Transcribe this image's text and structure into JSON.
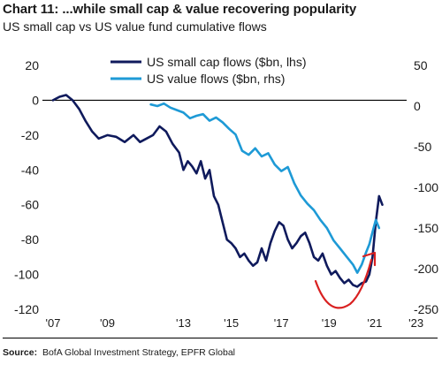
{
  "header": {
    "title": "Chart 11: ...while small cap & value recovering popularity",
    "subtitle": "US small cap vs US value fund cumulative flows"
  },
  "footer": {
    "source_label": "Source:",
    "source_text": "BofA Global Investment Strategy, EPFR Global"
  },
  "colors": {
    "small_cap": "#0f1a5c",
    "value": "#1e9ad6",
    "annotation": "#d92020",
    "zero_line": "#000000"
  },
  "chart_data": {
    "type": "line",
    "title": "Chart 11: ...while small cap & value recovering popularity",
    "subtitle": "US small cap vs US value fund cumulative flows",
    "x_ticks": [
      "'07",
      "'09",
      "'13",
      "'15",
      "'17",
      "'19",
      "'21",
      "'23"
    ],
    "x_tick_positions": [
      2007,
      2009.5,
      2013,
      2015.2,
      2017.5,
      2019.7,
      2021.8,
      2023.7
    ],
    "xlim": [
      2007,
      2024
    ],
    "y_left": {
      "ticks": [
        20,
        0,
        -20,
        -40,
        -60,
        -80,
        -100,
        -120
      ],
      "ylim": [
        -120,
        20
      ]
    },
    "y_right": {
      "ticks": [
        50,
        0,
        -50,
        -100,
        -150,
        -200,
        -250
      ],
      "ylim": [
        -250,
        50
      ]
    },
    "legend": {
      "placement": "top-center"
    },
    "series": [
      {
        "name": "US small cap flows ($bn, lhs)",
        "axis": "left",
        "x": [
          2007.0,
          2007.3,
          2007.6,
          2007.9,
          2008.2,
          2008.5,
          2008.8,
          2009.1,
          2009.5,
          2009.9,
          2010.3,
          2010.7,
          2011.0,
          2011.3,
          2011.6,
          2011.9,
          2012.2,
          2012.5,
          2012.8,
          2013.0,
          2013.2,
          2013.4,
          2013.6,
          2013.8,
          2014.0,
          2014.2,
          2014.4,
          2014.6,
          2014.8,
          2015.0,
          2015.2,
          2015.4,
          2015.6,
          2015.8,
          2016.0,
          2016.2,
          2016.4,
          2016.6,
          2016.8,
          2017.0,
          2017.2,
          2017.4,
          2017.6,
          2017.8,
          2018.0,
          2018.2,
          2018.4,
          2018.6,
          2018.8,
          2019.0,
          2019.2,
          2019.4,
          2019.6,
          2019.8,
          2020.0,
          2020.2,
          2020.4,
          2020.6,
          2020.8,
          2021.0,
          2021.2,
          2021.4,
          2021.55,
          2021.7,
          2021.85,
          2022.0,
          2022.15
        ],
        "values": [
          0,
          2,
          3,
          0,
          -5,
          -12,
          -18,
          -22,
          -20,
          -21,
          -24,
          -20,
          -24,
          -22,
          -20,
          -15,
          -18,
          -25,
          -30,
          -40,
          -35,
          -38,
          -42,
          -35,
          -45,
          -40,
          -55,
          -60,
          -70,
          -80,
          -82,
          -85,
          -90,
          -88,
          -92,
          -95,
          -93,
          -85,
          -92,
          -82,
          -75,
          -70,
          -72,
          -80,
          -85,
          -82,
          -78,
          -76,
          -82,
          -90,
          -92,
          -88,
          -95,
          -100,
          -98,
          -102,
          -105,
          -103,
          -106,
          -107,
          -105,
          -104,
          -100,
          -90,
          -70,
          -55,
          -60
        ]
      },
      {
        "name": "US value flows ($bn, rhs)",
        "axis": "right",
        "x": [
          2011.5,
          2011.8,
          2012.1,
          2012.4,
          2012.7,
          2013.0,
          2013.3,
          2013.6,
          2013.9,
          2014.2,
          2014.5,
          2014.8,
          2015.1,
          2015.4,
          2015.7,
          2016.0,
          2016.3,
          2016.6,
          2016.9,
          2017.2,
          2017.5,
          2017.8,
          2018.1,
          2018.4,
          2018.7,
          2019.0,
          2019.3,
          2019.6,
          2019.9,
          2020.2,
          2020.5,
          2020.8,
          2021.0,
          2021.2,
          2021.4,
          2021.55,
          2021.7,
          2021.85,
          2022.0
        ],
        "values": [
          2,
          0,
          3,
          -2,
          -5,
          -8,
          -15,
          -12,
          -10,
          -18,
          -14,
          -20,
          -28,
          -35,
          -55,
          -60,
          -52,
          -62,
          -58,
          -72,
          -80,
          -75,
          -95,
          -110,
          -120,
          -128,
          -140,
          -150,
          -165,
          -175,
          -185,
          -195,
          -205,
          -195,
          -180,
          -170,
          -155,
          -140,
          -150
        ]
      }
    ],
    "annotations": [
      {
        "type": "curved-arrow",
        "color": "red",
        "description_visible": false
      }
    ]
  }
}
